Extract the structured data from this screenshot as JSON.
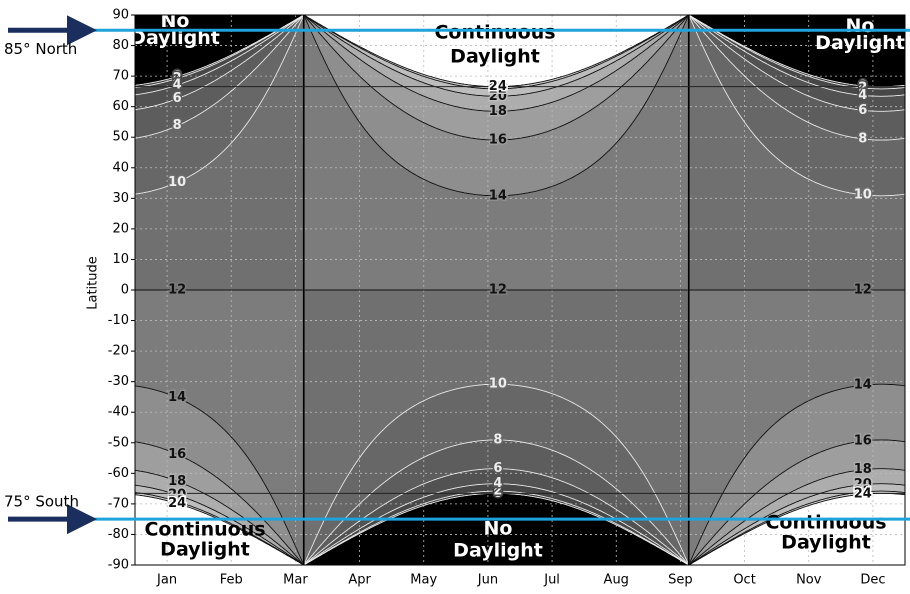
{
  "chart_data": {
    "type": "contour",
    "ylabel": "Latitude",
    "categories": [
      "Jan",
      "Feb",
      "Mar",
      "Apr",
      "May",
      "Jun",
      "Jul",
      "Aug",
      "Sep",
      "Oct",
      "Nov",
      "Dec"
    ],
    "ylim": [
      -90,
      90
    ],
    "yticks": [
      -90,
      -80,
      -70,
      -60,
      -50,
      -40,
      -30,
      -20,
      -10,
      0,
      10,
      20,
      30,
      40,
      50,
      60,
      70,
      80,
      90
    ],
    "grid": true,
    "levels": [
      0,
      2,
      4,
      6,
      8,
      10,
      12,
      14,
      16,
      18,
      20,
      22,
      24
    ],
    "background_color": "#000000",
    "fill_colors": [
      "#3c3c3c",
      "#474747",
      "#525252",
      "#5d5d5d",
      "#676767",
      "#707070",
      "#7c7c7c",
      "#8e8e8e",
      "#9e9e9e",
      "#adadad",
      "#bdbdbd",
      "#cdcdcd",
      "#ffffff"
    ],
    "reference_lines": [
      66.56,
      -66.56
    ],
    "annotations": [
      {
        "lines": [
          "No",
          "Daylight"
        ]
      },
      {
        "lines": [
          "Continuous",
          "Daylight"
        ]
      },
      {
        "lines": [
          "No",
          "Daylight"
        ]
      },
      {
        "lines": [
          "Continuous",
          "Daylight"
        ]
      },
      {
        "lines": [
          "No",
          "Daylight"
        ]
      },
      {
        "lines": [
          "Continuous",
          "Daylight"
        ]
      }
    ],
    "markers": [
      {
        "label": "85° North",
        "lat": 85,
        "color": "#1ea3db"
      },
      {
        "label": "75° South",
        "lat": -75,
        "color": "#1ea3db"
      }
    ]
  }
}
